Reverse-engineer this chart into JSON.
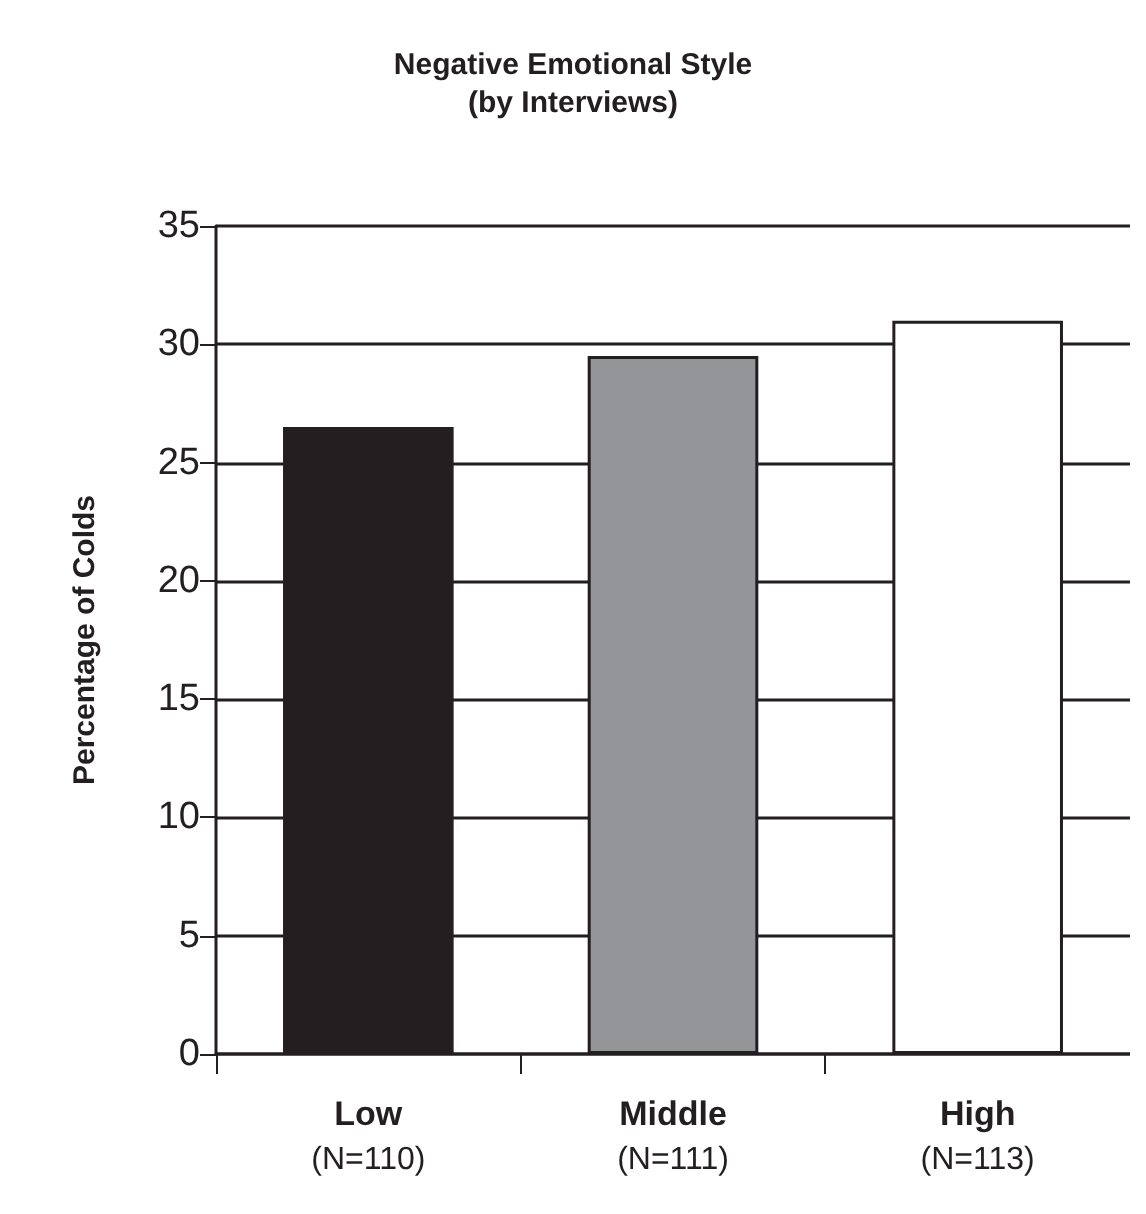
{
  "chart_data": {
    "type": "bar",
    "title": "Negative Emotional Style",
    "subtitle": "(by Interviews)",
    "ylabel": "Percentage of Colds",
    "categories": [
      "Low\n(N=110)",
      "Middle\n(N=111)",
      "High\n(N=113)"
    ],
    "values": [
      26.5,
      29.5,
      31
    ],
    "colors": [
      "#231f20",
      "#939598",
      "#ffffff"
    ],
    "ylim": [
      0,
      35
    ],
    "yticks": [
      0,
      5,
      10,
      15,
      20,
      25,
      30,
      35
    ],
    "grid": "y"
  }
}
